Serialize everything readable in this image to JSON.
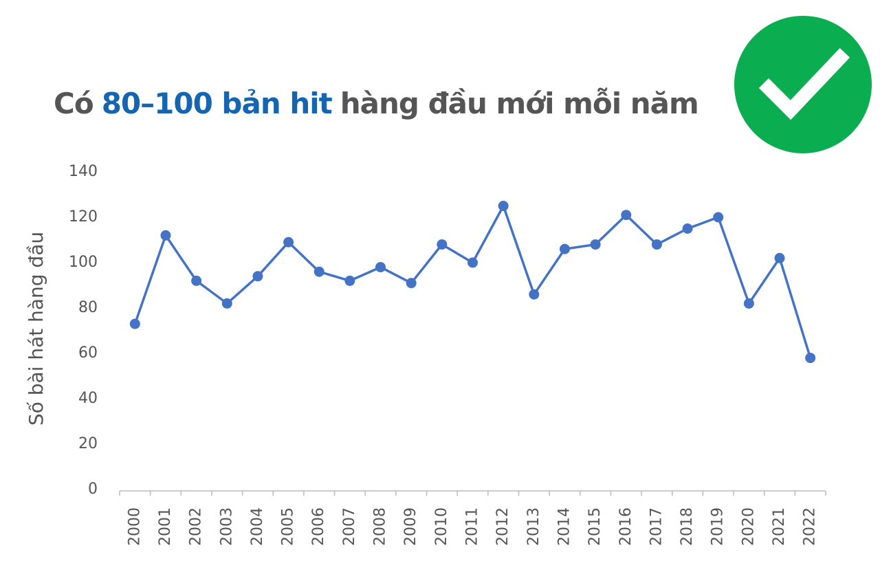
{
  "chart_data": {
    "type": "line",
    "title_parts": [
      "Có",
      "80–100 bản hit",
      "hàng đầu mới mỗi năm"
    ],
    "y_label": "Số bài hát hàng đầu",
    "categories": [
      "2000",
      "2001",
      "2002",
      "2003",
      "2004",
      "2005",
      "2006",
      "2007",
      "2008",
      "2009",
      "2010",
      "2011",
      "2012",
      "2013",
      "2014",
      "2015",
      "2016",
      "2017",
      "2018",
      "2019",
      "2020",
      "2021",
      "2022"
    ],
    "values": [
      73,
      112,
      92,
      82,
      94,
      109,
      96,
      92,
      98,
      91,
      108,
      100,
      125,
      86,
      106,
      108,
      121,
      108,
      115,
      120,
      82,
      102,
      58
    ],
    "color": "#4472c4",
    "ylim": [
      0,
      140
    ],
    "yticks": [
      0,
      20,
      40,
      60,
      80,
      100,
      120,
      140
    ],
    "grid": false
  }
}
